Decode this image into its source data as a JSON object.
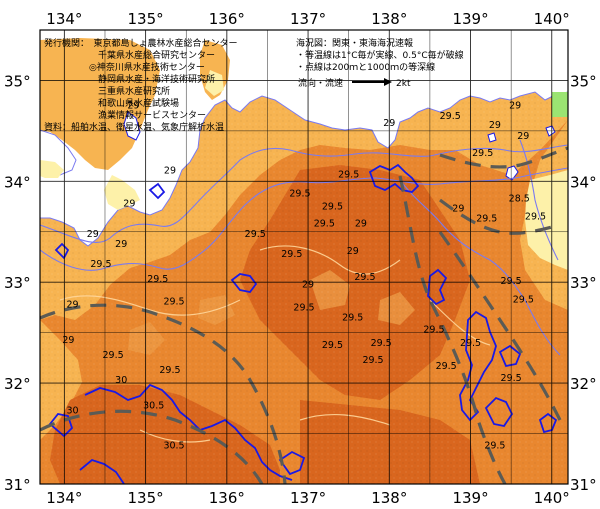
{
  "map": {
    "lon_range": [
      133.7,
      140.2
    ],
    "lat_range": [
      31.0,
      35.5
    ],
    "lon_ticks": [
      "134°",
      "135°",
      "136°",
      "137°",
      "138°",
      "139°",
      "140°"
    ],
    "lat_ticks": [
      "35°",
      "34°",
      "33°",
      "32°",
      "31°"
    ],
    "colors": {
      "water_light": "#f7b451",
      "water_mid": "#e9872f",
      "water_dark": "#d9661e",
      "land": "#ffffff",
      "land_pale": "#fdf1a9",
      "isobath": "#7a7af0",
      "contour_05": "#ffd69a",
      "coast_blue": "#1919e6",
      "dashed_current": "#5b5b55",
      "grid": "#000000",
      "top_right_green": "#9be472"
    }
  },
  "info_left": {
    "lines": [
      "発行機関：　東京都島しょ農林水産総合センター",
      "　　　　　　千葉県水産総合研究センター",
      "　　　　　◎神奈川県水産技術センター",
      "　　　　　　静岡県水産・海洋技術研究所",
      "　　　　　　三重県水産研究所",
      "　　　　　　和歌山県水産試験場",
      "　　　　　　漁業情報サービスセンター",
      "資料：船舶水温、衛星水温、気象庁解析水温"
    ]
  },
  "info_right": {
    "lines": [
      "海況図：関東・東海海況速報",
      "・等温線は1°C毎が実線、0.5°C毎が破線",
      "・点線は200ｍと1000ｍの等深線"
    ],
    "legend_label": "流向・流速",
    "legend_speed": "2kt"
  },
  "isotherm_labels": [
    {
      "text": "29.5",
      "lon": 137.5,
      "lat": 34.04
    },
    {
      "text": "29.5",
      "lon": 136.9,
      "lat": 33.85
    },
    {
      "text": "29.5",
      "lon": 137.3,
      "lat": 33.72
    },
    {
      "text": "29.5",
      "lon": 137.2,
      "lat": 33.55
    },
    {
      "text": "29.5",
      "lon": 136.35,
      "lat": 33.45
    },
    {
      "text": "29.5",
      "lon": 136.8,
      "lat": 33.25
    },
    {
      "text": "29",
      "lon": 137.55,
      "lat": 33.28
    },
    {
      "text": "29",
      "lon": 137.65,
      "lat": 33.55
    },
    {
      "text": "29.5",
      "lon": 137.7,
      "lat": 33.02
    },
    {
      "text": "29",
      "lon": 137.0,
      "lat": 32.95
    },
    {
      "text": "29.5",
      "lon": 136.95,
      "lat": 32.72
    },
    {
      "text": "29.5",
      "lon": 137.55,
      "lat": 32.62
    },
    {
      "text": "29.5",
      "lon": 137.3,
      "lat": 32.35
    },
    {
      "text": "29.5",
      "lon": 137.9,
      "lat": 32.37
    },
    {
      "text": "29.5",
      "lon": 137.8,
      "lat": 32.2
    },
    {
      "text": "29.5",
      "lon": 138.55,
      "lat": 32.5
    },
    {
      "text": "29.5",
      "lon": 139.0,
      "lat": 32.37
    },
    {
      "text": "29.5",
      "lon": 138.7,
      "lat": 32.14
    },
    {
      "text": "29",
      "lon": 138.0,
      "lat": 34.55
    },
    {
      "text": "29.5",
      "lon": 138.75,
      "lat": 34.62
    },
    {
      "text": "29",
      "lon": 139.55,
      "lat": 34.72
    },
    {
      "text": "29",
      "lon": 139.3,
      "lat": 34.53
    },
    {
      "text": "29",
      "lon": 139.65,
      "lat": 34.42
    },
    {
      "text": "29.5",
      "lon": 139.15,
      "lat": 34.25
    },
    {
      "text": "29",
      "lon": 138.85,
      "lat": 33.7
    },
    {
      "text": "29.5",
      "lon": 139.2,
      "lat": 33.6
    },
    {
      "text": "28.5",
      "lon": 139.6,
      "lat": 33.8
    },
    {
      "text": "29.5",
      "lon": 139.8,
      "lat": 33.62
    },
    {
      "text": "29.5",
      "lon": 139.5,
      "lat": 32.98
    },
    {
      "text": "29.5",
      "lon": 139.65,
      "lat": 32.8
    },
    {
      "text": "29.5",
      "lon": 139.5,
      "lat": 32.02
    },
    {
      "text": "29.5",
      "lon": 139.3,
      "lat": 31.35
    },
    {
      "text": "29",
      "lon": 134.7,
      "lat": 33.35
    },
    {
      "text": "29",
      "lon": 134.35,
      "lat": 33.45
    },
    {
      "text": "29.5",
      "lon": 134.45,
      "lat": 33.15
    },
    {
      "text": "29.5",
      "lon": 135.15,
      "lat": 33.0
    },
    {
      "text": "29.5",
      "lon": 135.35,
      "lat": 32.78
    },
    {
      "text": "29",
      "lon": 134.1,
      "lat": 32.75
    },
    {
      "text": "29",
      "lon": 134.05,
      "lat": 32.4
    },
    {
      "text": "29.5",
      "lon": 134.6,
      "lat": 32.25
    },
    {
      "text": "30",
      "lon": 134.7,
      "lat": 32.0
    },
    {
      "text": "29.5",
      "lon": 135.3,
      "lat": 32.1
    },
    {
      "text": "30.5",
      "lon": 135.1,
      "lat": 31.75
    },
    {
      "text": "30.5",
      "lon": 135.35,
      "lat": 31.35
    },
    {
      "text": "30",
      "lon": 134.1,
      "lat": 31.7
    },
    {
      "text": "29",
      "lon": 134.8,
      "lat": 33.75
    },
    {
      "text": "29",
      "lon": 135.3,
      "lat": 34.08
    },
    {
      "text": "29",
      "lon": 134.85,
      "lat": 34.72
    }
  ]
}
